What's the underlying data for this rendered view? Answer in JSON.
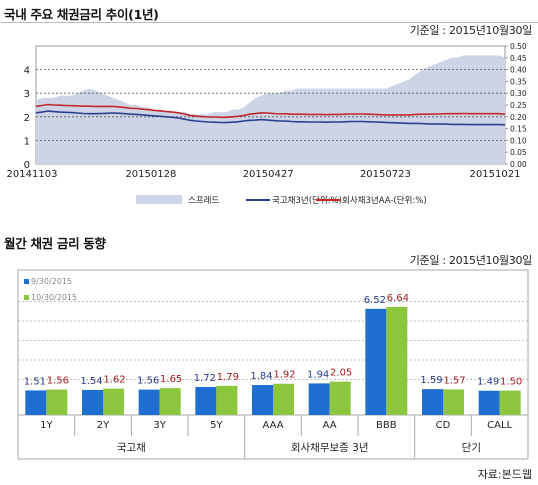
{
  "section1": {
    "title": "국내 주요 채권금리 추이(1년)",
    "base_date": "기준일 : 2015년10월30일"
  },
  "section2": {
    "title": "월간 채권 금리 동향",
    "base_date": "기준일 : 2015년10월30일"
  },
  "source": "자료:본드웹",
  "colors": {
    "spread_fill": "#ccd4e6",
    "treasury_line": "#2b3f8f",
    "corporate_line": "#c0282b",
    "bar_sep": "#1f6fd0",
    "bar_oct": "#8cc63f",
    "label_sep": "#2a3a8a",
    "label_oct": "#a0201e"
  },
  "chart_data": [
    {
      "type": "line",
      "x_ticks": [
        "20141103",
        "20150128",
        "20150427",
        "20150723",
        "20151021"
      ],
      "y_left_ticks": [
        "0",
        "1",
        "2",
        "3",
        "4"
      ],
      "y_left_lim": [
        0,
        5
      ],
      "y_right_ticks": [
        "0.00",
        "0.05",
        "0.10",
        "0.15",
        "0.20",
        "0.25",
        "0.30",
        "0.35",
        "0.40",
        "0.45",
        "0.50"
      ],
      "y_right_lim": [
        0,
        0.5
      ],
      "grid": true,
      "legend": [
        "스프레드",
        "국고채3년(단위:%)",
        "회사채3년AA-(단위:%)"
      ],
      "legend_position": "bottom",
      "series": [
        {
          "name": "스프레드",
          "axis": "right",
          "kind": "area",
          "values": [
            0.27,
            0.28,
            0.28,
            0.28,
            0.29,
            0.29,
            0.29,
            0.3,
            0.31,
            0.32,
            0.31,
            0.3,
            0.29,
            0.28,
            0.27,
            0.26,
            0.25,
            0.25,
            0.24,
            0.24,
            0.23,
            0.23,
            0.22,
            0.22,
            0.22,
            0.22,
            0.21,
            0.21,
            0.21,
            0.21,
            0.22,
            0.22,
            0.22,
            0.23,
            0.23,
            0.24,
            0.26,
            0.28,
            0.29,
            0.3,
            0.3,
            0.3,
            0.31,
            0.31,
            0.32,
            0.32,
            0.32,
            0.32,
            0.32,
            0.32,
            0.32,
            0.32,
            0.32,
            0.32,
            0.32,
            0.32,
            0.32,
            0.32,
            0.32,
            0.32,
            0.33,
            0.34,
            0.35,
            0.36,
            0.38,
            0.4,
            0.41,
            0.42,
            0.43,
            0.44,
            0.45,
            0.45,
            0.46,
            0.46,
            0.46,
            0.46,
            0.46,
            0.46,
            0.46,
            0.45
          ]
        },
        {
          "name": "국고채3년(단위:%)",
          "axis": "left",
          "kind": "line",
          "values": [
            2.17,
            2.2,
            2.24,
            2.22,
            2.2,
            2.19,
            2.18,
            2.16,
            2.14,
            2.13,
            2.13,
            2.14,
            2.15,
            2.16,
            2.15,
            2.13,
            2.11,
            2.1,
            2.08,
            2.06,
            2.04,
            2.02,
            2.0,
            1.98,
            1.95,
            1.9,
            1.85,
            1.82,
            1.8,
            1.78,
            1.77,
            1.76,
            1.76,
            1.77,
            1.79,
            1.82,
            1.85,
            1.86,
            1.88,
            1.86,
            1.84,
            1.82,
            1.82,
            1.8,
            1.79,
            1.79,
            1.78,
            1.78,
            1.78,
            1.77,
            1.78,
            1.78,
            1.79,
            1.8,
            1.8,
            1.8,
            1.79,
            1.78,
            1.77,
            1.76,
            1.75,
            1.74,
            1.73,
            1.72,
            1.72,
            1.71,
            1.7,
            1.7,
            1.69,
            1.69,
            1.68,
            1.68,
            1.68,
            1.67,
            1.67,
            1.67,
            1.67,
            1.67,
            1.67,
            1.66
          ]
        },
        {
          "name": "회사채3년AA-(단위:%)",
          "axis": "left",
          "kind": "line",
          "values": [
            2.44,
            2.48,
            2.52,
            2.5,
            2.49,
            2.48,
            2.47,
            2.46,
            2.45,
            2.45,
            2.44,
            2.44,
            2.44,
            2.44,
            2.42,
            2.39,
            2.36,
            2.35,
            2.32,
            2.3,
            2.27,
            2.25,
            2.22,
            2.2,
            2.17,
            2.12,
            2.06,
            2.03,
            2.01,
            1.99,
            1.99,
            1.98,
            1.98,
            2.0,
            2.02,
            2.06,
            2.11,
            2.14,
            2.17,
            2.16,
            2.14,
            2.12,
            2.13,
            2.11,
            2.11,
            2.11,
            2.1,
            2.1,
            2.1,
            2.09,
            2.1,
            2.1,
            2.11,
            2.12,
            2.12,
            2.12,
            2.11,
            2.1,
            2.09,
            2.08,
            2.08,
            2.08,
            2.08,
            2.08,
            2.1,
            2.11,
            2.11,
            2.12,
            2.12,
            2.13,
            2.13,
            2.13,
            2.14,
            2.13,
            2.13,
            2.13,
            2.13,
            2.13,
            2.13,
            2.11
          ]
        }
      ]
    },
    {
      "type": "bar",
      "categories": [
        "1Y",
        "2Y",
        "3Y",
        "5Y",
        "AAA",
        "AA",
        "BBB",
        "CD",
        "CALL"
      ],
      "groups": [
        {
          "label": "국고채",
          "span": 4
        },
        {
          "label": "회사채무보증 3년",
          "span": 3
        },
        {
          "label": "단기",
          "span": 2
        }
      ],
      "legend_position": "top-left",
      "grid": true,
      "series": [
        {
          "name": "9/30/2015",
          "values": [
            1.51,
            1.54,
            1.56,
            1.72,
            1.84,
            1.94,
            6.52,
            1.59,
            1.49
          ],
          "labels": [
            "1.51",
            "1.54",
            "1.56",
            "1.72",
            "1.84",
            "1.94",
            "6.52",
            "1.59",
            "1.49"
          ]
        },
        {
          "name": "10/30/2015",
          "values": [
            1.56,
            1.62,
            1.65,
            1.79,
            1.92,
            2.05,
            6.64,
            1.57,
            1.5
          ],
          "labels": [
            "1.56",
            "1.62",
            "1.65",
            "1.79",
            "1.92",
            "2.05",
            "6.64",
            "1.57",
            "1.50"
          ]
        }
      ]
    }
  ]
}
